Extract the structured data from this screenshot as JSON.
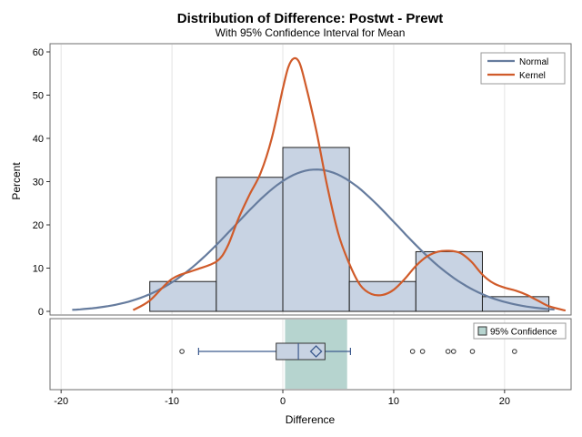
{
  "chart_data": {
    "type": "histogram",
    "title": "Distribution of Difference: Postwt - Prewt",
    "subtitle": "With 95% Confidence Interval for Mean",
    "xlabel": "Difference",
    "ylabel": "Percent",
    "xlim": [
      -21,
      26
    ],
    "ylim": [
      0,
      62
    ],
    "x_ticks": [
      -20,
      -10,
      0,
      10,
      20
    ],
    "y_ticks": [
      0,
      10,
      20,
      30,
      40,
      50,
      60
    ],
    "grid": "vertical",
    "bins": [
      {
        "start": -12,
        "end": -6,
        "percent": 6.9
      },
      {
        "start": -6,
        "end": 0,
        "percent": 31.0
      },
      {
        "start": 0,
        "end": 6,
        "percent": 37.9
      },
      {
        "start": 6,
        "end": 12,
        "percent": 6.9
      },
      {
        "start": 12,
        "end": 18,
        "percent": 13.8
      },
      {
        "start": 18,
        "end": 24,
        "percent": 3.4
      }
    ],
    "legend": {
      "placement": "top-right",
      "entries": [
        {
          "name": "Normal",
          "color": "#667c9e"
        },
        {
          "name": "Kernel",
          "color": "#d05b2a"
        }
      ]
    },
    "normal_curve": {
      "mean": 3.0,
      "sd": 7.3,
      "peak_percent": 32.8,
      "x_range": [
        -19,
        24.5
      ]
    },
    "kernel_curve": {
      "x": [
        -13.5,
        -12,
        -10,
        -8,
        -6,
        -5,
        -4,
        -3,
        -2,
        -1,
        0,
        0.5,
        1,
        1.5,
        2,
        3,
        4,
        5,
        6,
        7,
        8,
        9,
        10,
        11,
        12,
        13,
        14,
        15,
        16,
        17,
        18,
        19,
        20,
        21,
        22,
        23,
        24,
        25.5
      ],
      "y": [
        0.3,
        2.5,
        7.5,
        9.5,
        11.5,
        15,
        21.5,
        27,
        32,
        40,
        51.5,
        56.5,
        58.5,
        57.5,
        53,
        42,
        29,
        18,
        11,
        6,
        4,
        3.8,
        5,
        7.5,
        10.5,
        12.7,
        13.8,
        14,
        13.5,
        11.5,
        8.5,
        6.5,
        5.5,
        4.8,
        3.8,
        2.5,
        1.2,
        0.2
      ]
    },
    "boxplot": {
      "whisker_low": -7.6,
      "q1": -0.6,
      "median": 1.4,
      "mean": 3.0,
      "q3": 3.8,
      "whisker_high": 6.1,
      "outliers": [
        -9.1,
        11.7,
        12.6,
        14.9,
        15.4,
        17.1,
        20.9
      ]
    },
    "confidence_interval": {
      "label": "95% Confidence",
      "lower": 0.2,
      "upper": 5.8
    }
  },
  "colors": {
    "bar_fill": "#c8d3e3",
    "bar_stroke": "#1f1f1f",
    "normal": "#667c9e",
    "kernel": "#d05b2a",
    "ci_fill": "#b6d4cf",
    "box_stroke": "#3c5a8e",
    "grid": "#e4e4e4"
  }
}
